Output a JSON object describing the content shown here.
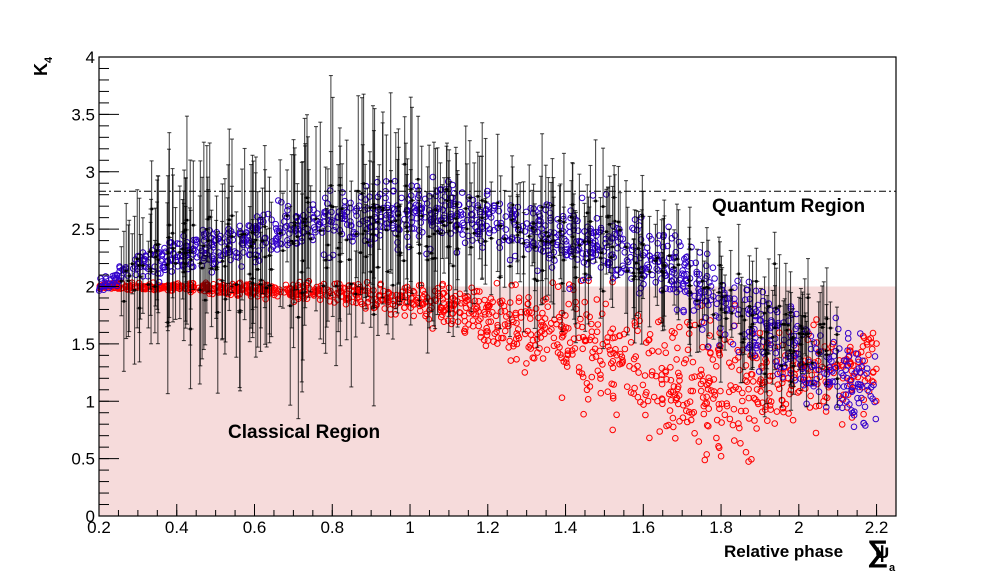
{
  "chart_data": {
    "type": "scatter",
    "title": "",
    "xlabel": {
      "main": "Relative phase",
      "symbol": "∑",
      "var": "ψ",
      "sub": "a"
    },
    "ylabel": {
      "main": "K",
      "sub": "4"
    },
    "xlim": [
      0.2,
      2.25
    ],
    "ylim": [
      0,
      4
    ],
    "x_ticks": [
      "0.2",
      "0.4",
      "0.6",
      "0.8",
      "1",
      "1.2",
      "1.4",
      "1.6",
      "1.8",
      "2",
      "2.2"
    ],
    "y_ticks": [
      "0",
      "0.5",
      "1",
      "1.5",
      "2",
      "2.5",
      "3",
      "3.5",
      "4"
    ],
    "quantum_bound": 2.83,
    "classical_bound": 2.0,
    "annotations": {
      "quantum": "Quantum Region",
      "classical": "Classical Region"
    },
    "series": [
      {
        "name": "classical model (red)",
        "marker": "open-circle",
        "color": "#ff0000",
        "trend_x": [
          0.2,
          0.4,
          0.6,
          0.8,
          1.0,
          1.2,
          1.4,
          1.6,
          1.8,
          2.0,
          2.2
        ],
        "trend_y": [
          2.0,
          2.0,
          1.97,
          1.95,
          1.88,
          1.75,
          1.55,
          1.3,
          1.1,
          1.2,
          1.3
        ],
        "spread": [
          0.02,
          0.03,
          0.05,
          0.08,
          0.12,
          0.2,
          0.35,
          0.45,
          0.45,
          0.35,
          0.3
        ],
        "points_per_segment": 120
      },
      {
        "name": "quantum model (blue)",
        "marker": "open-circle",
        "color": "#3300cc",
        "trend_x": [
          0.2,
          0.3,
          0.5,
          0.7,
          0.9,
          1.1,
          1.3,
          1.5,
          1.7,
          1.9,
          2.1,
          2.2
        ],
        "trend_y": [
          2.0,
          2.2,
          2.35,
          2.5,
          2.6,
          2.65,
          2.5,
          2.35,
          2.1,
          1.6,
          1.3,
          1.0
        ],
        "spread": [
          0.05,
          0.12,
          0.15,
          0.18,
          0.2,
          0.2,
          0.22,
          0.25,
          0.3,
          0.3,
          0.35,
          0.35
        ],
        "points_per_segment": 110
      },
      {
        "name": "measured data with error bars (black)",
        "marker": "point-errorbar",
        "color": "#000000",
        "trend_x": [
          0.25,
          0.4,
          0.6,
          0.8,
          1.0,
          1.2,
          1.4,
          1.6,
          1.8,
          1.95,
          2.1
        ],
        "trend_y": [
          2.1,
          2.2,
          2.3,
          2.45,
          2.5,
          2.5,
          2.4,
          2.25,
          1.9,
          1.6,
          1.5
        ],
        "spread": [
          0.25,
          0.4,
          0.45,
          0.45,
          0.4,
          0.35,
          0.35,
          0.35,
          0.3,
          0.3,
          0.3
        ],
        "error_size": [
          0.45,
          0.7,
          0.75,
          0.75,
          0.65,
          0.55,
          0.5,
          0.45,
          0.4,
          0.35,
          0.35
        ],
        "points_per_segment": 38
      }
    ]
  }
}
